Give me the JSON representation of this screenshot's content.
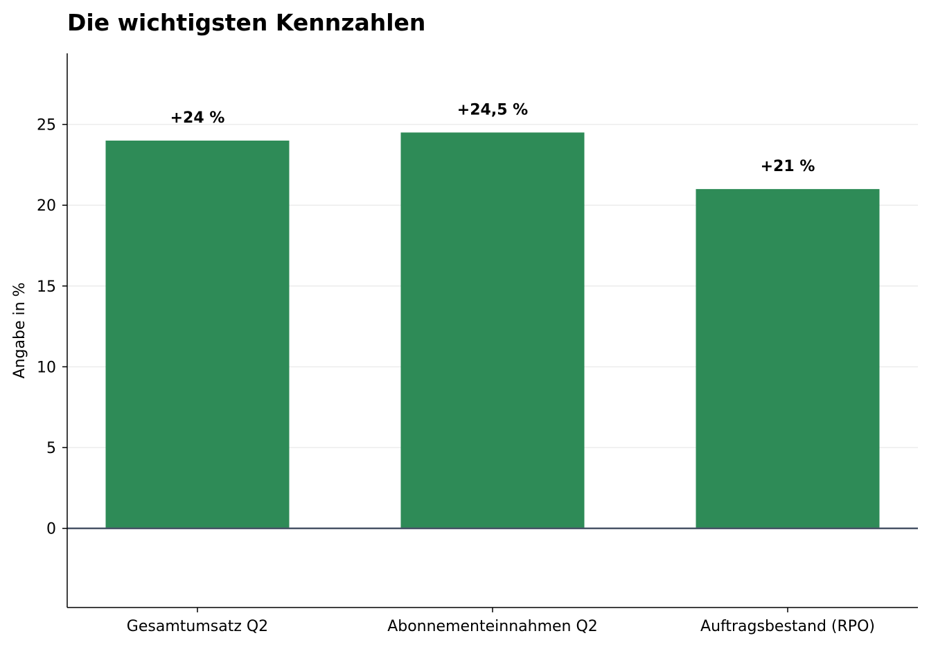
{
  "chart_data": {
    "type": "bar",
    "title": "Die wichtigsten Kennzahlen",
    "xlabel": "",
    "ylabel": "Angabe in %",
    "categories": [
      "Gesamtumsatz Q2",
      "Abonnementeinnahmen Q2",
      "Auftragsbestand (RPO)"
    ],
    "values": [
      24,
      24.5,
      21
    ],
    "data_labels": [
      "+24 %",
      "+24,5 %",
      "+21 %"
    ],
    "yticks": [
      0,
      5,
      10,
      15,
      20,
      25
    ],
    "ylim": [
      -4.9,
      29.4
    ],
    "grid": "horizontal, light",
    "legend": "none",
    "colors": {
      "bar": "#2e8b57",
      "zero_line": "#4a5568",
      "grid": "#ececec",
      "axis": "#000000"
    }
  }
}
